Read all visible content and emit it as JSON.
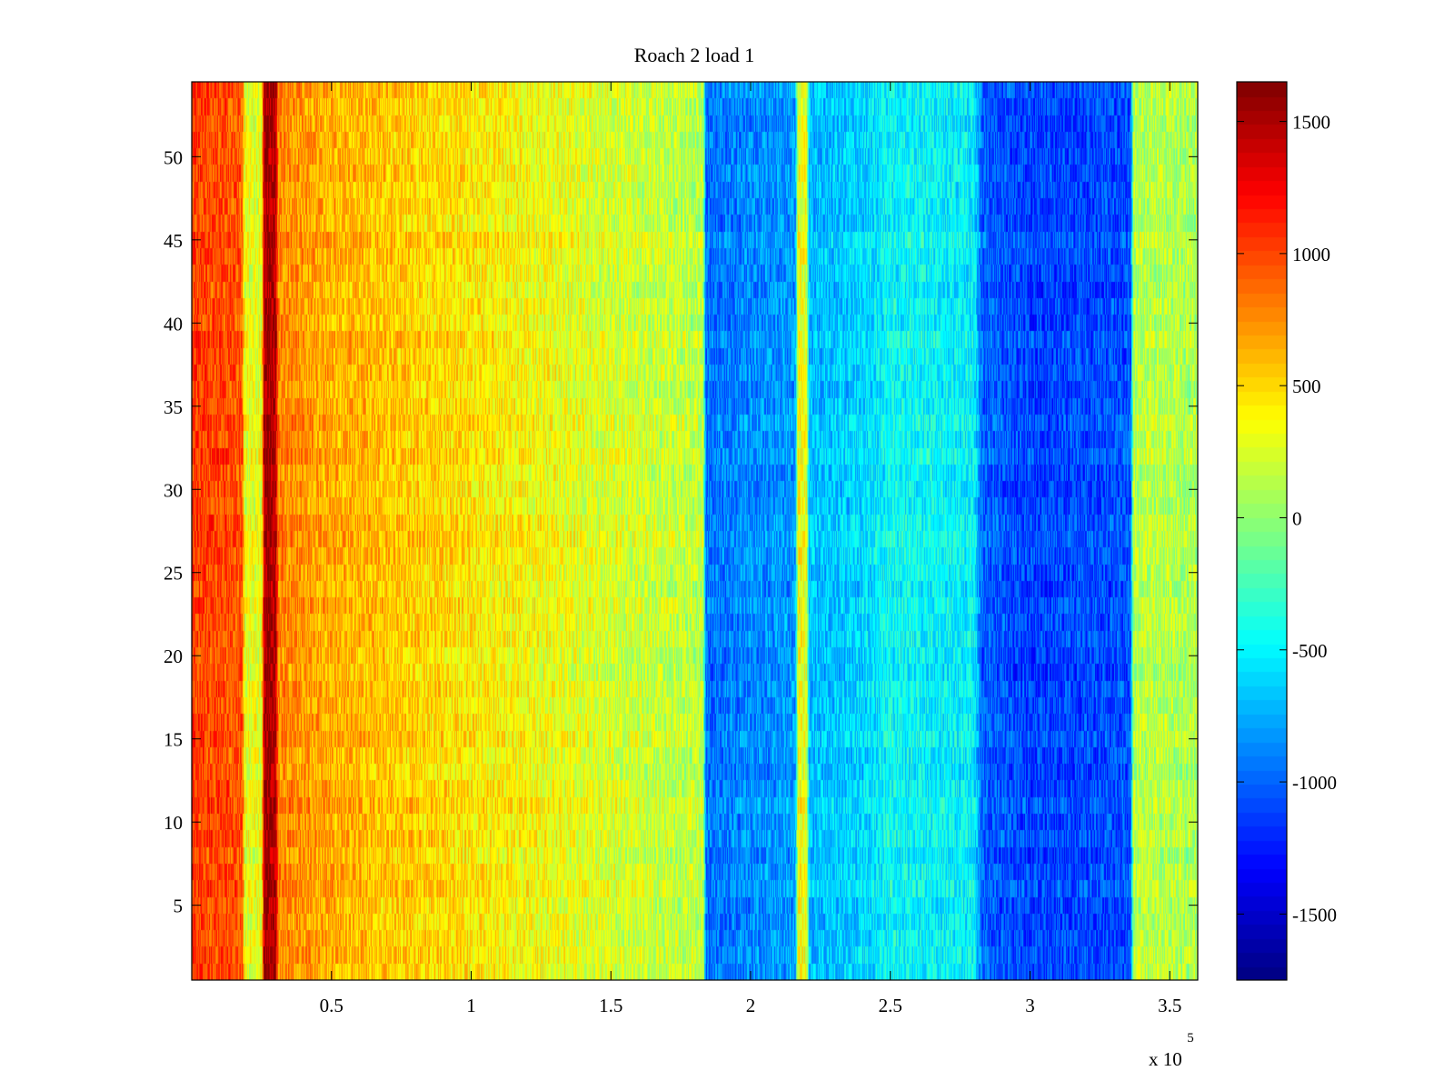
{
  "chart_data": {
    "type": "heatmap",
    "title": "Roach 2 load 1",
    "xlabel": "",
    "ylabel": "",
    "x_exponent_label": "x 10",
    "x_exponent_power": "5",
    "xlim": [
      0,
      360000
    ],
    "ylim": [
      0.5,
      54.5
    ],
    "x_ticks": [
      50000,
      100000,
      150000,
      200000,
      250000,
      300000,
      350000
    ],
    "x_tick_labels": [
      "0.5",
      "1",
      "1.5",
      "2",
      "2.5",
      "3",
      "3.5"
    ],
    "y_ticks": [
      5,
      10,
      15,
      20,
      25,
      30,
      35,
      40,
      45,
      50
    ],
    "y_tick_labels": [
      "5",
      "10",
      "15",
      "20",
      "25",
      "30",
      "35",
      "40",
      "45",
      "50"
    ],
    "colorbar": {
      "colormap": "jet",
      "clim": [
        -1750,
        1650
      ],
      "ticks": [
        -1500,
        -1000,
        -500,
        0,
        500,
        1000,
        1500
      ],
      "tick_labels": [
        "-1500",
        "-1000",
        "-500",
        "0",
        "500",
        "1000",
        "1500"
      ]
    },
    "rows": 54,
    "x_profile_mean": {
      "x": [
        0,
        18000,
        19000,
        25000,
        26000,
        30000,
        31000,
        50000,
        100000,
        150000,
        183000,
        184000,
        200000,
        216000,
        217000,
        220000,
        221000,
        240000,
        250000,
        280000,
        283000,
        300000,
        336000,
        337000,
        345000,
        360000
      ],
      "value": [
        1050,
        950,
        300,
        300,
        1550,
        1500,
        800,
        650,
        450,
        250,
        150,
        -950,
        -850,
        -800,
        350,
        300,
        -700,
        -600,
        -450,
        -500,
        -1000,
        -1100,
        -1050,
        150,
        150,
        100
      ]
    },
    "noise_amplitude": 260
  }
}
